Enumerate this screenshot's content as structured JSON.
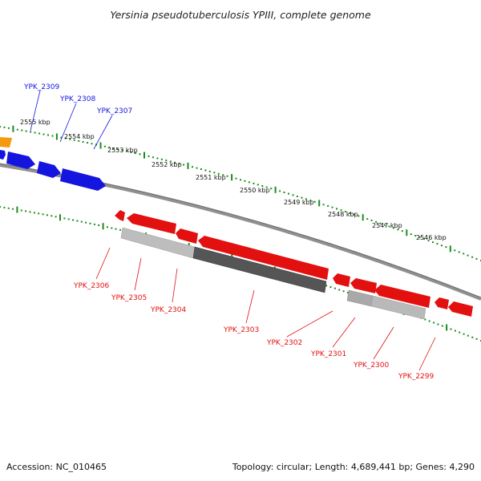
{
  "header": {
    "title": "Yersinia pseudotuberculosis YPIII, complete genome"
  },
  "footer": {
    "accession": "Accession: NC_010465",
    "summary": "Topology: circular; Length: 4,689,441 bp; Genes: 4,290"
  },
  "colors": {
    "forward_gene": "#1515e0",
    "reverse_gene": "#e31010",
    "orange_gene": "#f59a10",
    "backbone": "#808080",
    "ticks": "#1e8a1e",
    "shadow_light": "#b4b4b4",
    "shadow_dark": "#555555"
  },
  "scale": {
    "ticks": [
      "2555 kbp",
      "2554 kbp",
      "2553 kbp",
      "2552 kbp",
      "2551 kbp",
      "2550 kbp",
      "2549 kbp",
      "2548 kbp",
      "2547 kbp",
      "2546 kbp"
    ]
  },
  "genes": {
    "forward": [
      "YPK_2309",
      "YPK_2308",
      "YPK_2307"
    ],
    "reverse": [
      "YPK_2306",
      "YPK_2305",
      "YPK_2304",
      "YPK_2303",
      "YPK_2302",
      "YPK_2301",
      "YPK_2300",
      "YPK_2299"
    ]
  }
}
